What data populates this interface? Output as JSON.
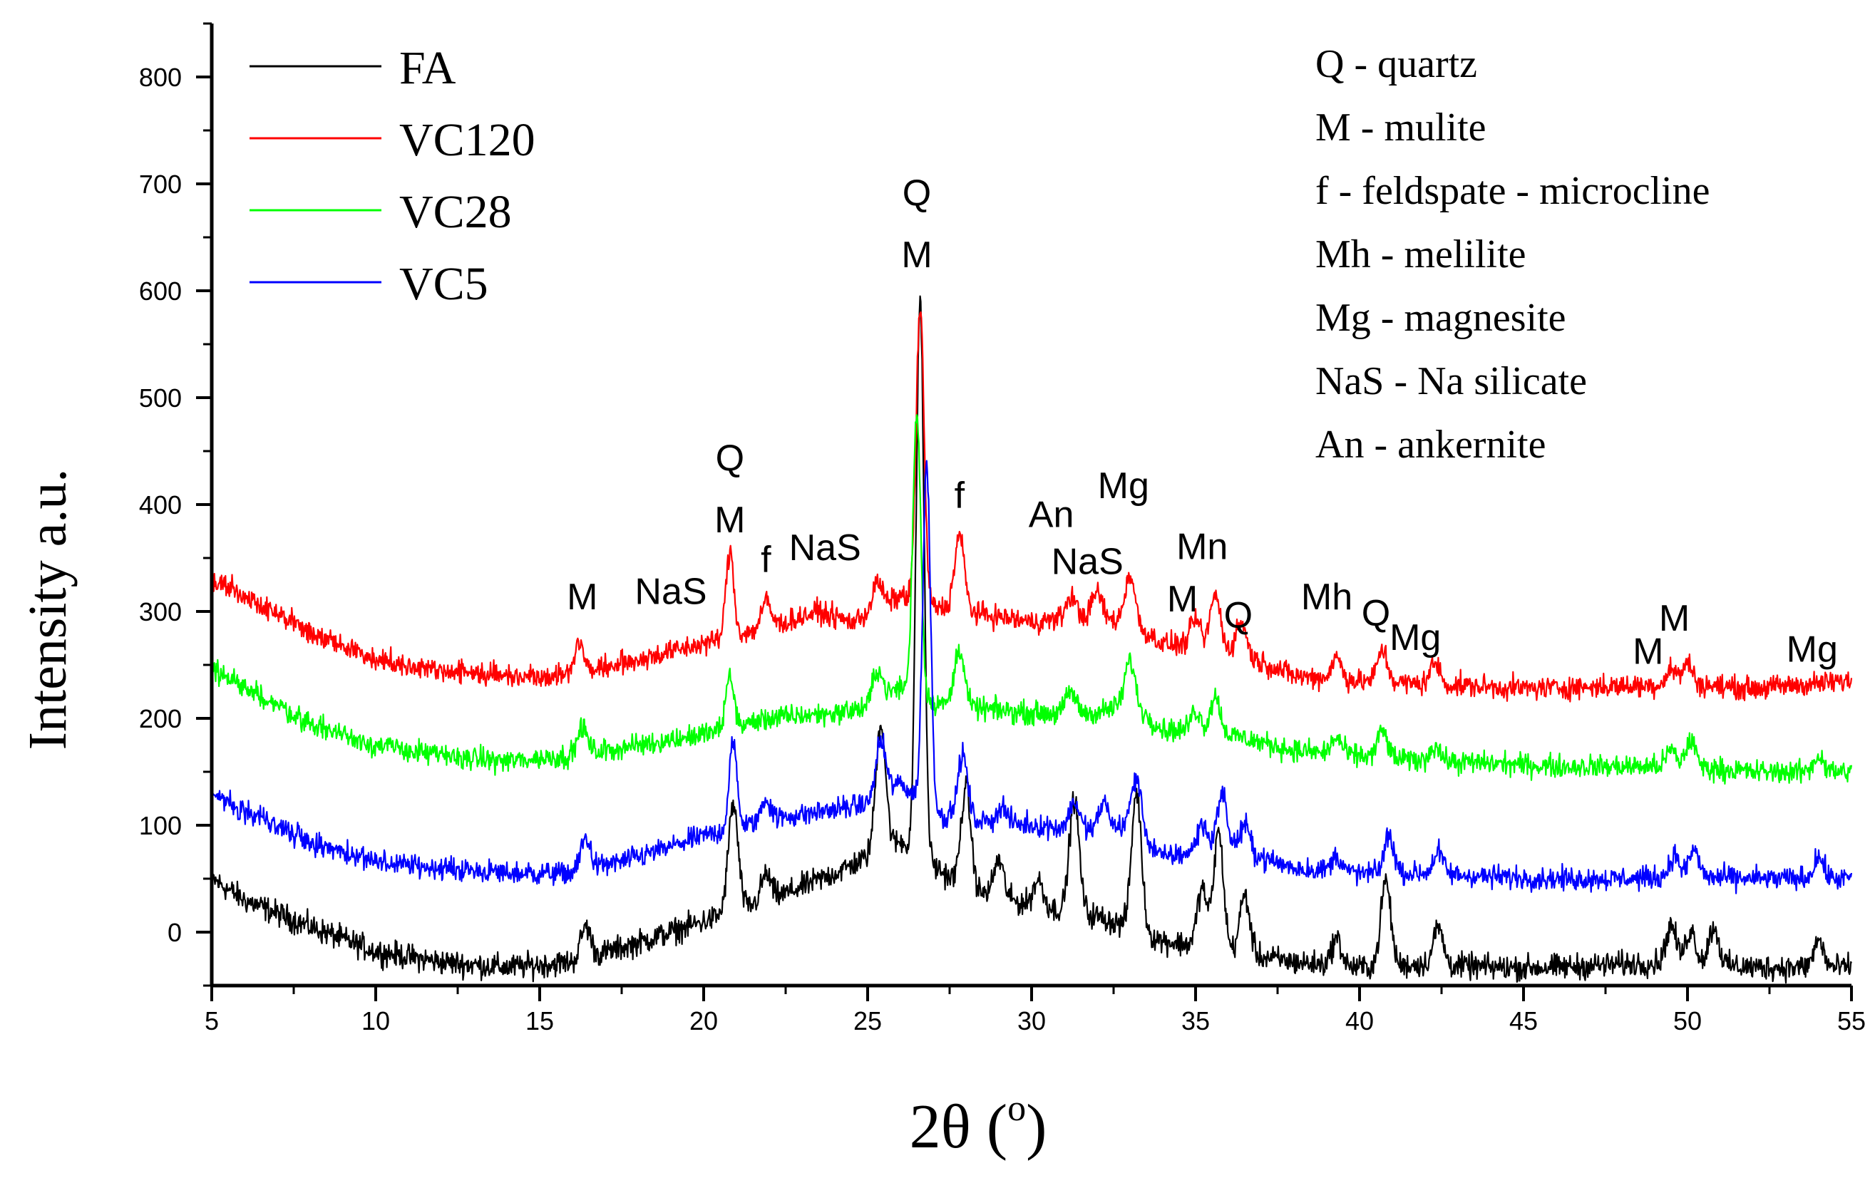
{
  "chart_data": {
    "type": "line",
    "title": "",
    "xlabel": "2θ (°)",
    "xlabel_main": "2θ (",
    "xlabel_sup": "o",
    "xlabel_close": ")",
    "ylabel": "Intensity a.u.",
    "xlim": [
      5,
      55
    ],
    "ylim": [
      -50,
      850
    ],
    "xticks": [
      5,
      10,
      15,
      20,
      25,
      30,
      35,
      40,
      45,
      50,
      55
    ],
    "yticks": [
      0,
      100,
      200,
      300,
      400,
      500,
      600,
      700,
      800
    ],
    "x_tick_labels": [
      "5",
      "10",
      "15",
      "20",
      "25",
      "30",
      "35",
      "40",
      "45",
      "50",
      "55"
    ],
    "y_tick_labels": [
      "0",
      "100",
      "200",
      "300",
      "400",
      "500",
      "600",
      "700",
      "800"
    ],
    "grid": false,
    "legend_position": "top-left",
    "series": [
      {
        "name": "FA",
        "color": "#000000",
        "noise": 9,
        "baseline": [
          [
            5,
            50
          ],
          [
            6,
            30
          ],
          [
            8,
            5
          ],
          [
            10,
            -18
          ],
          [
            12,
            -28
          ],
          [
            14,
            -33
          ],
          [
            16,
            -28
          ],
          [
            18,
            -10
          ],
          [
            20,
            10
          ],
          [
            22,
            30
          ],
          [
            24,
            55
          ],
          [
            25,
            70
          ],
          [
            26,
            85
          ],
          [
            28,
            40
          ],
          [
            30,
            25
          ],
          [
            32,
            15
          ],
          [
            34,
            -8
          ],
          [
            36,
            -18
          ],
          [
            38,
            -28
          ],
          [
            40,
            -33
          ],
          [
            42,
            -30
          ],
          [
            44,
            -33
          ],
          [
            46,
            -33
          ],
          [
            48,
            -30
          ],
          [
            50,
            -28
          ],
          [
            52,
            -33
          ],
          [
            55,
            -33
          ]
        ],
        "peaks": [
          [
            16.4,
            30,
            0.15
          ],
          [
            20.9,
            100,
            0.15
          ],
          [
            21.9,
            25,
            0.15
          ],
          [
            25.4,
            120,
            0.15
          ],
          [
            26.6,
            520,
            0.12
          ],
          [
            28,
            95,
            0.15
          ],
          [
            29,
            35,
            0.15
          ],
          [
            30.2,
            25,
            0.15
          ],
          [
            31.3,
            105,
            0.15
          ],
          [
            33.2,
            130,
            0.15
          ],
          [
            35.2,
            55,
            0.15
          ],
          [
            35.7,
            110,
            0.15
          ],
          [
            36.5,
            55,
            0.15
          ],
          [
            39.3,
            25,
            0.15
          ],
          [
            40.8,
            80,
            0.15
          ],
          [
            42.4,
            35,
            0.15
          ],
          [
            49.5,
            35,
            0.15
          ],
          [
            50.1,
            30,
            0.15
          ],
          [
            50.8,
            35,
            0.15
          ],
          [
            54,
            25,
            0.15
          ]
        ]
      },
      {
        "name": "VC120",
        "color": "#ff0000",
        "noise": 8,
        "baseline": [
          [
            5,
            330
          ],
          [
            6,
            315
          ],
          [
            8,
            280
          ],
          [
            10,
            255
          ],
          [
            12,
            245
          ],
          [
            14,
            240
          ],
          [
            16,
            240
          ],
          [
            18,
            255
          ],
          [
            20,
            270
          ],
          [
            22,
            285
          ],
          [
            23.5,
            300
          ],
          [
            24.5,
            290
          ],
          [
            25.5,
            305
          ],
          [
            26,
            315
          ],
          [
            27,
            305
          ],
          [
            28,
            300
          ],
          [
            30,
            290
          ],
          [
            31.5,
            295
          ],
          [
            33,
            290
          ],
          [
            34,
            270
          ],
          [
            36,
            265
          ],
          [
            38,
            240
          ],
          [
            40,
            235
          ],
          [
            42,
            232
          ],
          [
            45,
            228
          ],
          [
            48,
            230
          ],
          [
            50,
            232
          ],
          [
            52,
            228
          ],
          [
            55,
            235
          ]
        ],
        "peaks": [
          [
            16.2,
            30,
            0.15
          ],
          [
            20.8,
            80,
            0.12
          ],
          [
            21.9,
            25,
            0.15
          ],
          [
            25.3,
            25,
            0.15
          ],
          [
            26.6,
            275,
            0.12
          ],
          [
            27.8,
            70,
            0.15
          ],
          [
            31.2,
            20,
            0.15
          ],
          [
            32,
            25,
            0.15
          ],
          [
            33,
            45,
            0.15
          ],
          [
            35,
            25,
            0.15
          ],
          [
            35.6,
            50,
            0.15
          ],
          [
            36.4,
            30,
            0.15
          ],
          [
            39.3,
            20,
            0.15
          ],
          [
            40.7,
            30,
            0.15
          ],
          [
            42.3,
            20,
            0.15
          ],
          [
            49.5,
            15,
            0.15
          ],
          [
            50,
            20,
            0.15
          ]
        ]
      },
      {
        "name": "VC28",
        "color": "#00ff00",
        "noise": 8,
        "baseline": [
          [
            5,
            245
          ],
          [
            6,
            230
          ],
          [
            8,
            195
          ],
          [
            10,
            175
          ],
          [
            12,
            165
          ],
          [
            14,
            160
          ],
          [
            16,
            165
          ],
          [
            18,
            175
          ],
          [
            20,
            185
          ],
          [
            22,
            200
          ],
          [
            24,
            205
          ],
          [
            25,
            210
          ],
          [
            26,
            230
          ],
          [
            27,
            215
          ],
          [
            28,
            210
          ],
          [
            30,
            205
          ],
          [
            32,
            205
          ],
          [
            33,
            215
          ],
          [
            34,
            190
          ],
          [
            36,
            185
          ],
          [
            38,
            170
          ],
          [
            40,
            165
          ],
          [
            42,
            160
          ],
          [
            44,
            158
          ],
          [
            46,
            155
          ],
          [
            48,
            155
          ],
          [
            50,
            155
          ],
          [
            52,
            150
          ],
          [
            55,
            150
          ]
        ],
        "peaks": [
          [
            16.3,
            25,
            0.15
          ],
          [
            20.8,
            50,
            0.12
          ],
          [
            25.3,
            30,
            0.15
          ],
          [
            26.5,
            265,
            0.12
          ],
          [
            27.8,
            55,
            0.15
          ],
          [
            31.2,
            20,
            0.15
          ],
          [
            33,
            40,
            0.15
          ],
          [
            35,
            20,
            0.15
          ],
          [
            35.6,
            35,
            0.15
          ],
          [
            39.3,
            15,
            0.15
          ],
          [
            40.7,
            25,
            0.15
          ],
          [
            42.3,
            15,
            0.15
          ],
          [
            49.5,
            15,
            0.15
          ],
          [
            50.1,
            25,
            0.15
          ],
          [
            54,
            15,
            0.15
          ]
        ]
      },
      {
        "name": "VC5",
        "color": "#0000ff",
        "noise": 8,
        "baseline": [
          [
            5,
            130
          ],
          [
            6,
            115
          ],
          [
            8,
            85
          ],
          [
            10,
            65
          ],
          [
            12,
            60
          ],
          [
            14,
            55
          ],
          [
            16,
            55
          ],
          [
            18,
            70
          ],
          [
            20,
            90
          ],
          [
            22,
            105
          ],
          [
            24,
            115
          ],
          [
            25,
            120
          ],
          [
            26,
            140
          ],
          [
            27,
            110
          ],
          [
            28,
            105
          ],
          [
            30,
            100
          ],
          [
            32,
            95
          ],
          [
            33,
            100
          ],
          [
            34,
            70
          ],
          [
            36,
            80
          ],
          [
            38,
            60
          ],
          [
            40,
            55
          ],
          [
            42,
            55
          ],
          [
            44,
            52
          ],
          [
            46,
            50
          ],
          [
            48,
            50
          ],
          [
            50,
            52
          ],
          [
            52,
            50
          ],
          [
            55,
            50
          ]
        ],
        "peaks": [
          [
            16.4,
            30,
            0.15
          ],
          [
            20.9,
            80,
            0.12
          ],
          [
            21.9,
            20,
            0.15
          ],
          [
            25.4,
            50,
            0.15
          ],
          [
            26.8,
            320,
            0.12
          ],
          [
            27.9,
            60,
            0.15
          ],
          [
            29.1,
            15,
            0.15
          ],
          [
            31.3,
            25,
            0.15
          ],
          [
            32.2,
            25,
            0.15
          ],
          [
            33.2,
            50,
            0.15
          ],
          [
            35.2,
            25,
            0.15
          ],
          [
            35.8,
            50,
            0.15
          ],
          [
            36.5,
            25,
            0.15
          ],
          [
            39.3,
            15,
            0.15
          ],
          [
            40.9,
            35,
            0.15
          ],
          [
            42.4,
            20,
            0.15
          ],
          [
            49.6,
            20,
            0.15
          ],
          [
            50.2,
            25,
            0.15
          ],
          [
            54,
            20,
            0.15
          ]
        ]
      }
    ],
    "legend": [
      {
        "label": "FA",
        "color": "#000000"
      },
      {
        "label": "VC120",
        "color": "#ff0000"
      },
      {
        "label": "VC28",
        "color": "#00ff00"
      },
      {
        "label": "VC5",
        "color": "#0000ff"
      }
    ],
    "phase_key": [
      "Q - quartz",
      "M - mulite",
      "f - feldspate - microcline",
      "Mh - melilite",
      "Mg - magnesite",
      "NaS - Na silicate",
      "An - ankernite"
    ],
    "peak_annotations": [
      {
        "text": "M",
        "x": 16.3,
        "y": 302
      },
      {
        "text": "NaS",
        "x": 19,
        "y": 307
      },
      {
        "text": "Q",
        "x": 20.8,
        "y": 432
      },
      {
        "text": "M",
        "x": 20.8,
        "y": 374
      },
      {
        "text": "f",
        "x": 21.9,
        "y": 337
      },
      {
        "text": "NaS",
        "x": 23.7,
        "y": 348
      },
      {
        "text": "Q",
        "x": 26.5,
        "y": 680
      },
      {
        "text": "M",
        "x": 26.5,
        "y": 622
      },
      {
        "text": "f",
        "x": 27.8,
        "y": 397
      },
      {
        "text": "An",
        "x": 30.6,
        "y": 379
      },
      {
        "text": "NaS",
        "x": 31.7,
        "y": 335
      },
      {
        "text": "Mg",
        "x": 32.8,
        "y": 406
      },
      {
        "text": "Mn",
        "x": 35.2,
        "y": 349
      },
      {
        "text": "M",
        "x": 34.6,
        "y": 300
      },
      {
        "text": "Q",
        "x": 36.3,
        "y": 285
      },
      {
        "text": "Mh",
        "x": 39,
        "y": 302
      },
      {
        "text": "Q",
        "x": 40.5,
        "y": 287
      },
      {
        "text": "Mg",
        "x": 41.7,
        "y": 264
      },
      {
        "text": "M",
        "x": 48.8,
        "y": 251
      },
      {
        "text": "M",
        "x": 49.6,
        "y": 282
      },
      {
        "text": "Mg",
        "x": 53.8,
        "y": 253
      }
    ]
  }
}
